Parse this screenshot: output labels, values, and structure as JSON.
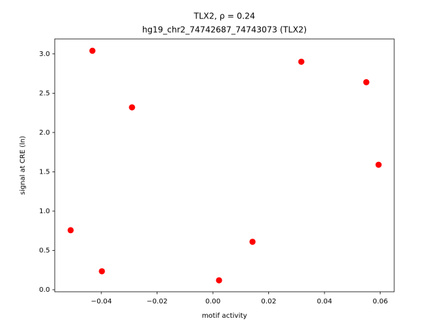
{
  "chart_data": {
    "type": "scatter",
    "title": "TLX2, ρ = 0.24",
    "subtitle": "hg19_chr2_74742687_74743073 (TLX2)",
    "x_label": "motif activity",
    "y_label": "signal at CRE (ln)",
    "color": "#ff0000",
    "x": [
      -0.051,
      -0.0432,
      -0.0398,
      -0.029,
      0.0022,
      0.0142,
      0.0317,
      0.055,
      0.0594
    ],
    "values": [
      0.757,
      3.04,
      0.235,
      2.32,
      0.12,
      0.61,
      2.9,
      2.64,
      1.59
    ],
    "xlim": [
      -0.0567,
      0.065
    ],
    "ylim": [
      -0.026,
      3.19
    ],
    "xticks": [
      {
        "value": -0.04,
        "label": "−0.04"
      },
      {
        "value": -0.02,
        "label": "−0.02"
      },
      {
        "value": 0,
        "label": "0.00"
      },
      {
        "value": 0.02,
        "label": "0.02"
      },
      {
        "value": 0.04,
        "label": "0.04"
      },
      {
        "value": 0.06,
        "label": "0.06"
      }
    ],
    "yticks": [
      {
        "value": 0,
        "label": "0.0"
      },
      0.5,
      {
        "value": 1,
        "label": "1.0"
      },
      1.5,
      {
        "value": 2,
        "label": "2.0"
      },
      2.5,
      {
        "value": 3,
        "label": "3.0"
      }
    ],
    "grid": false
  }
}
